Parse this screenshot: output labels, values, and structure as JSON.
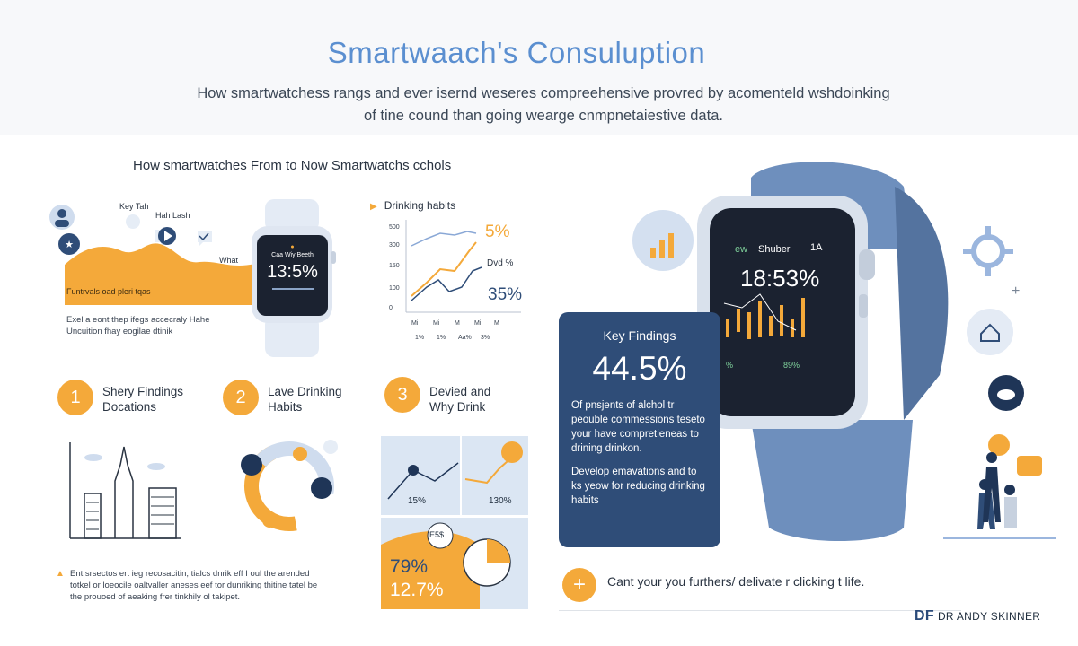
{
  "header": {
    "title": "Smartwaach's Consuluption",
    "subtitle_line1": "How smartwatchess rangs and ever isernd weseres compreehensive provred by acomenteld wshdoinking",
    "subtitle_line2": "of tine cound than going wearge cnmpnetaiestive data."
  },
  "section": {
    "heading": "How smartwatches From to Now Smartwatchs cchols"
  },
  "left_chart": {
    "callout1": "Key Tah",
    "callout2": "Hah Lash",
    "callout3": "What",
    "area_label": "Funtrvals oad pleri tqas",
    "watch_header": "Caa Wiy Beeth",
    "watch_value": "13:5%",
    "caption_line1": "Exel a eont thep ifegs accecraly Hahe",
    "caption_line2": "Uncuition fhay eogilae dtinik"
  },
  "drinking_chart": {
    "title": "Drinking habits",
    "y_ticks": [
      "500",
      "300",
      "150",
      "100",
      "0"
    ],
    "x_ticks_row1": [
      "Mi",
      "Mi",
      "M",
      "Mi",
      "M"
    ],
    "x_ticks_row2": [
      "1%",
      "1%",
      "Aa%",
      "3%"
    ],
    "label_top": "5%",
    "label_mid": "Dvd %",
    "label_low": "35%"
  },
  "steps": [
    {
      "number": "1",
      "line1": "Shery Findings",
      "line2": "Docations"
    },
    {
      "number": "2",
      "line1": "Lave Drinking",
      "line2": "Habits"
    },
    {
      "number": "3",
      "line1": "Devied and",
      "line2": "Why Drink"
    }
  ],
  "tiles": {
    "tile1_value": "15%",
    "tile2_value": "130%",
    "tile3_badge": "E5$",
    "tile3_value1": "79%",
    "tile3_value2": "12.7%"
  },
  "bottom_text": {
    "line1": "Ent srsectos ert ieg recosacitin, tialcs dnrik eff I oul the arended",
    "line2": "totkel or loeocile oaltvaller aneses eef tor dunriking thitine tatel be",
    "line3": "the prouoed of aeaking frer tinkhily ol takipet."
  },
  "big_watch": {
    "status_left": "ew",
    "status_mid": "Shuber",
    "status_right": "1A",
    "time": "18:53%",
    "bottom_left": "%",
    "bottom_right": "89%"
  },
  "key_findings": {
    "title": "Key Findings",
    "value": "44.5%",
    "para1": "Of pnsjents of alchol tr peouble commessions teseto your have compretieneas to drining drinkon.",
    "para2": "Develop emavations and to ks yeow for reducing drinking habits"
  },
  "cta": {
    "icon": "+",
    "text": "Cant your you furthers/ delivate r clicking t life."
  },
  "brand": {
    "logo": "DF",
    "name": "DR ANDY SKINNER"
  },
  "colors": {
    "accent_orange": "#f4a93a",
    "accent_blue": "#5b8fd0",
    "navy": "#2f4d78",
    "strap_blue": "#6e8fbd"
  }
}
